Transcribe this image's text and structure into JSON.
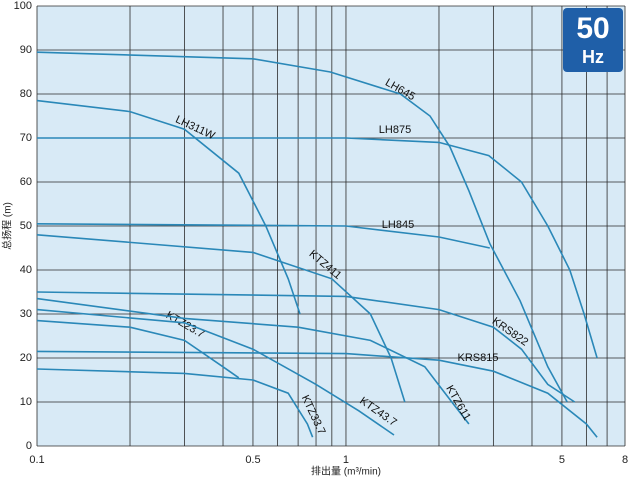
{
  "chart_data": {
    "type": "line",
    "title": "50",
    "subtitle": "Hz",
    "x_label": "排出量 (m³/min)",
    "y_label": "总扬程 (m)",
    "log_x": true,
    "grid": true,
    "color": "#2a88b8",
    "xlim": [
      0.1,
      8
    ],
    "xticks": [
      0.1,
      0.5,
      1,
      5,
      8
    ],
    "xminor": [
      0.2,
      0.3,
      0.4,
      0.6,
      0.7,
      0.8,
      0.9,
      2,
      3,
      4,
      6,
      7
    ],
    "ylim": [
      0,
      100
    ],
    "yticks": [
      0,
      10,
      20,
      30,
      40,
      50,
      60,
      70,
      80,
      90,
      100
    ],
    "series": [
      {
        "name": "LH645",
        "x": [
          0.1,
          0.5,
          0.89,
          1.5,
          1.87,
          2.17,
          2.5,
          2.92,
          3.66,
          4.5,
          5.2
        ],
        "values": [
          89.5,
          88,
          85,
          80,
          75,
          68,
          58,
          46,
          33,
          18,
          10
        ]
      },
      {
        "name": "LH875",
        "x": [
          0.1,
          1,
          2,
          2.9,
          3.7,
          4.5,
          5.3,
          5.9,
          6.5
        ],
        "values": [
          70,
          70,
          69,
          66,
          60,
          50,
          40,
          30,
          20
        ]
      },
      {
        "name": "LH311W",
        "x": [
          0.1,
          0.2,
          0.3,
          0.45,
          0.55,
          0.65,
          0.71
        ],
        "values": [
          78.5,
          76,
          72,
          62,
          50,
          38,
          30
        ]
      },
      {
        "name": "LH845",
        "x": [
          0.1,
          1,
          2,
          2.92
        ],
        "values": [
          50.5,
          50,
          47.5,
          45
        ]
      },
      {
        "name": "KTZ411",
        "x": [
          0.1,
          0.5,
          0.9,
          1.2,
          1.4,
          1.55
        ],
        "values": [
          48,
          44,
          38,
          30,
          20,
          10
        ]
      },
      {
        "name": "KRS822",
        "x": [
          0.1,
          1,
          2,
          3,
          3.7,
          4.5,
          5.5
        ],
        "values": [
          35,
          34,
          31,
          27,
          22,
          14,
          10
        ]
      },
      {
        "name": "KRS815",
        "x": [
          0.1,
          1,
          2,
          3,
          4.5,
          6,
          6.5
        ],
        "values": [
          21.5,
          21,
          19.5,
          17,
          12,
          5,
          2
        ]
      },
      {
        "name": "KTZ23.7",
        "x": [
          0.1,
          0.2,
          0.3,
          0.4,
          0.45
        ],
        "values": [
          28.5,
          27,
          24,
          18,
          15.5
        ]
      },
      {
        "name": "KTZ611",
        "x": [
          0.1,
          0.3,
          0.7,
          1.2,
          1.8,
          2.2,
          2.5
        ],
        "values": [
          33.5,
          29,
          27,
          24,
          18,
          10,
          5
        ]
      },
      {
        "name": "KTZ43.7",
        "x": [
          0.1,
          0.3,
          0.5,
          0.8,
          1.1,
          1.43
        ],
        "values": [
          31,
          28,
          22,
          14,
          8,
          2.5
        ]
      },
      {
        "name": "KTZ33.7",
        "x": [
          0.1,
          0.3,
          0.5,
          0.65,
          0.75,
          0.78
        ],
        "values": [
          17.5,
          16.5,
          15,
          12,
          5,
          2
        ]
      }
    ]
  }
}
